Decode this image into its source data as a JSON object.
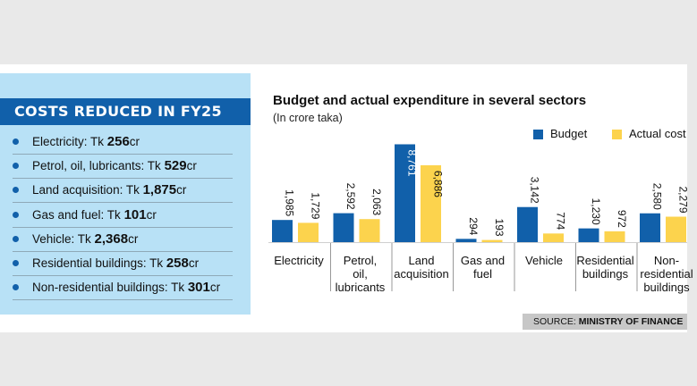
{
  "side_panel": {
    "title": "COSTS REDUCED IN FY25",
    "items": [
      {
        "label": "Electricity: Tk ",
        "value": "256",
        "unit": "cr"
      },
      {
        "label": "Petrol, oil, lubricants: Tk ",
        "value": "529",
        "unit": "cr"
      },
      {
        "label": "Land acquisition: Tk ",
        "value": "1,875",
        "unit": "cr"
      },
      {
        "label": "Gas and fuel: Tk ",
        "value": "101",
        "unit": "cr"
      },
      {
        "label": "Vehicle: Tk ",
        "value": "2,368",
        "unit": "cr"
      },
      {
        "label": "Residential buildings: Tk ",
        "value": "258",
        "unit": "cr"
      },
      {
        "label": "Non-residential buildings: Tk ",
        "value": "301",
        "unit": "cr"
      }
    ]
  },
  "chart_data": {
    "type": "bar",
    "title": "Budget and actual expenditure in several sectors",
    "subtitle": "(In crore taka)",
    "categories": [
      "Electricity",
      "Petrol, oil, lubricants",
      "Land acquisition",
      "Gas and fuel",
      "Vehicle",
      "Residential buildings",
      "Non-residential buildings"
    ],
    "category_lines": [
      [
        "Electricity"
      ],
      [
        "Petrol,",
        "oil,",
        "lubricants"
      ],
      [
        "Land",
        "acquisition"
      ],
      [
        "Gas and",
        "fuel"
      ],
      [
        "Vehicle"
      ],
      [
        "Residential",
        "buildings"
      ],
      [
        "Non-",
        "residential",
        "buildings"
      ]
    ],
    "series": [
      {
        "name": "Budget",
        "values": [
          1985,
          2592,
          8761,
          294,
          3142,
          1230,
          2580
        ],
        "labels": [
          "1,985",
          "2,592",
          "8,761",
          "294",
          "3,142",
          "1,230",
          "2,580"
        ]
      },
      {
        "name": "Actual cost",
        "values": [
          1729,
          2063,
          6886,
          193,
          774,
          972,
          2279
        ],
        "labels": [
          "1,729",
          "2,063",
          "6,886",
          "193",
          "774",
          "972",
          "2,279"
        ]
      }
    ],
    "ylim": [
      0,
      8800
    ],
    "colors": {
      "budget": "#1160aa",
      "actual": "#fcd34d"
    }
  },
  "source": {
    "prefix": "SOURCE: ",
    "name": "MINISTRY OF FINANCE"
  }
}
